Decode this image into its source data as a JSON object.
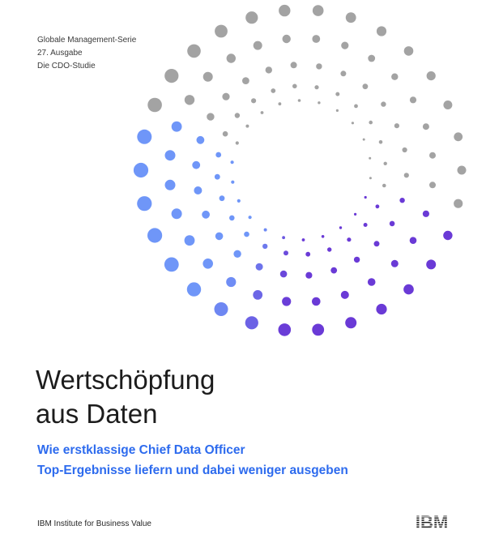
{
  "header": {
    "series": "Globale Management-Serie",
    "edition": "27. Ausgabe",
    "study": "Die CDO-Studie"
  },
  "title": {
    "line1": "Wertschöpfung",
    "line2": "aus Daten"
  },
  "subtitle": {
    "line1": "Wie erstklassige Chief Data Officer",
    "line2": "Top-Ergebnisse liefern und dabei weniger ausgeben"
  },
  "footer": {
    "institute": "IBM Institute for Business Value",
    "logo_text": "IBM"
  },
  "colors": {
    "gray": "#a3a3a3",
    "blue": "#6f96f8",
    "purple": "#6a3ad6",
    "subtitle": "#2d6bee"
  }
}
